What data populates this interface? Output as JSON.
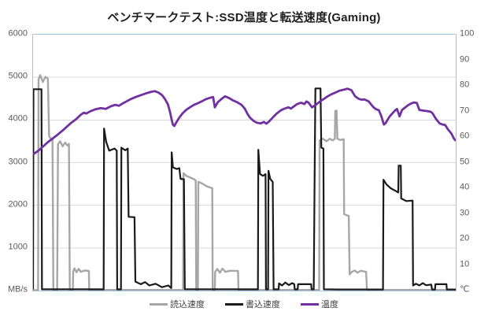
{
  "title": "ベンチマークテスト:SSD温度と転送速度(Gaming)",
  "frame_color": "#9DC3E6",
  "grid_color": "#D9D9D9",
  "axis_label_color": "#595959",
  "ticks_left": [
    "6000",
    "5000",
    "4000",
    "3000",
    "2000",
    "1000",
    "MB/s"
  ],
  "ticks_right": [
    "100",
    "90",
    "80",
    "70",
    "60",
    "50",
    "40",
    "30",
    "20",
    "10",
    "℃"
  ],
  "legend": [
    {
      "label": "読込速度",
      "color": "#A6A6A6"
    },
    {
      "label": "書込速度",
      "color": "#1A1A1A"
    },
    {
      "label": "温度",
      "color": "#7030A0"
    }
  ],
  "chart_data": {
    "type": "line",
    "title": "ベンチマークテスト:SSD温度と転送速度(Gaming)",
    "xlabel": "",
    "x_range_percent": [
      0,
      100
    ],
    "ylabel_left": "MB/s",
    "ylim_left": [
      0,
      6000
    ],
    "ylabel_right": "℃",
    "ylim_right": [
      0,
      100
    ],
    "grid": "horizontal-only",
    "legend_position": "bottom",
    "series": [
      {
        "name": "読込速度",
        "axis": "left",
        "color": "#A6A6A6",
        "width": 2.4,
        "points": [
          [
            0,
            10
          ],
          [
            1.2,
            10
          ],
          [
            1.3,
            4950
          ],
          [
            1.7,
            5050
          ],
          [
            2.3,
            4890
          ],
          [
            2.9,
            5010
          ],
          [
            3.5,
            4970
          ],
          [
            3.8,
            3620
          ],
          [
            4.2,
            3560
          ],
          [
            4.6,
            3550
          ],
          [
            4.8,
            10
          ],
          [
            5.7,
            10
          ],
          [
            5.9,
            3430
          ],
          [
            6.4,
            3500
          ],
          [
            7.0,
            3380
          ],
          [
            7.6,
            3470
          ],
          [
            8.1,
            3400
          ],
          [
            8.5,
            3440
          ],
          [
            8.7,
            10
          ],
          [
            9.4,
            10
          ],
          [
            9.5,
            450
          ],
          [
            9.8,
            520
          ],
          [
            10.3,
            430
          ],
          [
            10.8,
            510
          ],
          [
            11.3,
            440
          ],
          [
            12.2,
            470
          ],
          [
            13.2,
            460
          ],
          [
            13.3,
            15
          ],
          [
            17,
            15
          ],
          [
            22,
            15
          ],
          [
            28,
            15
          ],
          [
            33,
            15
          ],
          [
            35.5,
            15
          ],
          [
            35.6,
            2750
          ],
          [
            36.3,
            2690
          ],
          [
            37.2,
            2650
          ],
          [
            38.1,
            2610
          ],
          [
            38.5,
            2580
          ],
          [
            38.6,
            15
          ],
          [
            39.0,
            15
          ],
          [
            39.1,
            2550
          ],
          [
            40.0,
            2510
          ],
          [
            41.2,
            2440
          ],
          [
            42.4,
            2400
          ],
          [
            42.5,
            15
          ],
          [
            43.0,
            15
          ],
          [
            43.1,
            440
          ],
          [
            43.6,
            510
          ],
          [
            44.2,
            420
          ],
          [
            44.8,
            515
          ],
          [
            45.5,
            440
          ],
          [
            46.6,
            465
          ],
          [
            48.5,
            460
          ],
          [
            48.6,
            15
          ],
          [
            54,
            15
          ],
          [
            60,
            15
          ],
          [
            67.7,
            15
          ],
          [
            67.8,
            3520
          ],
          [
            68.6,
            3560
          ],
          [
            69.4,
            3500
          ],
          [
            70.2,
            3560
          ],
          [
            70.9,
            3520
          ],
          [
            71.4,
            3560
          ],
          [
            71.5,
            4210
          ],
          [
            71.8,
            4220
          ],
          [
            72.0,
            3560
          ],
          [
            72.7,
            3530
          ],
          [
            73.5,
            3550
          ],
          [
            73.6,
            1790
          ],
          [
            74.7,
            1750
          ],
          [
            74.9,
            380
          ],
          [
            75.4,
            440
          ],
          [
            76.1,
            470
          ],
          [
            76.8,
            420
          ],
          [
            77.5,
            465
          ],
          [
            78.8,
            440
          ],
          [
            79.0,
            15
          ],
          [
            84,
            15
          ],
          [
            90,
            15
          ],
          [
            100,
            15
          ]
        ]
      },
      {
        "name": "書込速度",
        "axis": "left",
        "color": "#1A1A1A",
        "width": 2.2,
        "points": [
          [
            0,
            30
          ],
          [
            0.1,
            4720
          ],
          [
            2.0,
            4720
          ],
          [
            2.1,
            30
          ],
          [
            16.7,
            30
          ],
          [
            16.8,
            3800
          ],
          [
            17.3,
            3490
          ],
          [
            18.0,
            3280
          ],
          [
            19.3,
            3330
          ],
          [
            19.8,
            3280
          ],
          [
            19.9,
            30
          ],
          [
            20.8,
            30
          ],
          [
            20.9,
            3350
          ],
          [
            21.8,
            3290
          ],
          [
            22.4,
            3330
          ],
          [
            22.6,
            1730
          ],
          [
            24.0,
            1720
          ],
          [
            24.2,
            210
          ],
          [
            25.5,
            150
          ],
          [
            26.5,
            200
          ],
          [
            27.5,
            120
          ],
          [
            29.0,
            160
          ],
          [
            30.5,
            80
          ],
          [
            32.0,
            120
          ],
          [
            32.7,
            60
          ],
          [
            32.8,
            3240
          ],
          [
            33.1,
            2890
          ],
          [
            34.0,
            2850
          ],
          [
            34.6,
            2870
          ],
          [
            34.9,
            2620
          ],
          [
            35.7,
            2610
          ],
          [
            35.9,
            30
          ],
          [
            38,
            30
          ],
          [
            42,
            30
          ],
          [
            47,
            30
          ],
          [
            53.2,
            30
          ],
          [
            53.3,
            3300
          ],
          [
            53.7,
            2730
          ],
          [
            54.4,
            2690
          ],
          [
            55.0,
            2730
          ],
          [
            55.1,
            30
          ],
          [
            55.6,
            30
          ],
          [
            55.7,
            2810
          ],
          [
            56.1,
            2620
          ],
          [
            56.7,
            2550
          ],
          [
            56.9,
            30
          ],
          [
            58.1,
            30
          ],
          [
            58.2,
            170
          ],
          [
            58.9,
            120
          ],
          [
            59.7,
            190
          ],
          [
            60.5,
            130
          ],
          [
            61.3,
            175
          ],
          [
            61.8,
            150
          ],
          [
            61.9,
            30
          ],
          [
            62.6,
            30
          ],
          [
            62.7,
            150
          ],
          [
            65.8,
            150
          ],
          [
            65.9,
            30
          ],
          [
            66.4,
            30
          ],
          [
            66.6,
            2400
          ],
          [
            66.8,
            4740
          ],
          [
            68.0,
            4740
          ],
          [
            68.2,
            3350
          ],
          [
            68.7,
            3330
          ],
          [
            68.8,
            30
          ],
          [
            72,
            25
          ],
          [
            78,
            25
          ],
          [
            82.8,
            25
          ],
          [
            82.9,
            2600
          ],
          [
            83.6,
            2490
          ],
          [
            84.6,
            2400
          ],
          [
            85.9,
            2330
          ],
          [
            86.4,
            2300
          ],
          [
            86.5,
            2930
          ],
          [
            87.0,
            2930
          ],
          [
            87.1,
            2160
          ],
          [
            88.3,
            2100
          ],
          [
            89.8,
            2110
          ],
          [
            89.9,
            120
          ],
          [
            90.6,
            160
          ],
          [
            91.4,
            120
          ],
          [
            92.2,
            175
          ],
          [
            93.0,
            125
          ],
          [
            94.2,
            140
          ],
          [
            94.4,
            25
          ],
          [
            95.1,
            25
          ],
          [
            95.2,
            150
          ],
          [
            97.8,
            150
          ],
          [
            97.9,
            25
          ],
          [
            100,
            25
          ]
        ]
      },
      {
        "name": "温度",
        "axis": "right",
        "color": "#7030A0",
        "width": 2.8,
        "points": [
          [
            0,
            53.2
          ],
          [
            1.5,
            55
          ],
          [
            3.5,
            58
          ],
          [
            5.5,
            60.5
          ],
          [
            7.3,
            63
          ],
          [
            9,
            65.5
          ],
          [
            10.2,
            67
          ],
          [
            11.2,
            68.6
          ],
          [
            12,
            69.5
          ],
          [
            12.6,
            69.2
          ],
          [
            13.6,
            70.1
          ],
          [
            14.7,
            70.8
          ],
          [
            16,
            71.3
          ],
          [
            17.2,
            71
          ],
          [
            18.4,
            72
          ],
          [
            19.5,
            72.6
          ],
          [
            20.3,
            72.2
          ],
          [
            21.2,
            73.1
          ],
          [
            22.3,
            74.1
          ],
          [
            23.1,
            74.8
          ],
          [
            24.1,
            75.5
          ],
          [
            25.9,
            76.6
          ],
          [
            27,
            77.2
          ],
          [
            28,
            77.7
          ],
          [
            28.8,
            77.9
          ],
          [
            29.6,
            77.4
          ],
          [
            30.5,
            76.4
          ],
          [
            31.2,
            74.9
          ],
          [
            31.9,
            72.8
          ],
          [
            32.4,
            69.8
          ],
          [
            32.8,
            66.8
          ],
          [
            33.1,
            64.8
          ],
          [
            33.4,
            64.3
          ],
          [
            33.9,
            65.7
          ],
          [
            34.6,
            67.6
          ],
          [
            35.3,
            69.1
          ],
          [
            36.2,
            70.6
          ],
          [
            37.1,
            71.6
          ],
          [
            38.1,
            72.6
          ],
          [
            39.1,
            73.3
          ],
          [
            40.1,
            74.1
          ],
          [
            40.9,
            74.8
          ],
          [
            41.8,
            75.3
          ],
          [
            42.6,
            75.6
          ],
          [
            43,
            71.6
          ],
          [
            43.7,
            73.6
          ],
          [
            44.6,
            74.9
          ],
          [
            45.4,
            75.9
          ],
          [
            46.4,
            75.2
          ],
          [
            47.3,
            74.3
          ],
          [
            48.3,
            73.6
          ],
          [
            49.3,
            72.6
          ],
          [
            50.1,
            71.1
          ],
          [
            50.7,
            69.1
          ],
          [
            51.3,
            67.6
          ],
          [
            52.1,
            66.4
          ],
          [
            52.9,
            65.6
          ],
          [
            53.9,
            65.3
          ],
          [
            54.6,
            65.9
          ],
          [
            55.2,
            65.2
          ],
          [
            55.8,
            66
          ],
          [
            56.7,
            67.6
          ],
          [
            57.6,
            69.1
          ],
          [
            58.6,
            70.4
          ],
          [
            59.5,
            71.1
          ],
          [
            60.4,
            71.6
          ],
          [
            61,
            71.1
          ],
          [
            61.8,
            72.1
          ],
          [
            62.5,
            72.9
          ],
          [
            63.4,
            73.4
          ],
          [
            64.2,
            72.9
          ],
          [
            64.7,
            73.9
          ],
          [
            65.2,
            73.4
          ],
          [
            66,
            71.6
          ],
          [
            66.9,
            72.6
          ],
          [
            67.9,
            73.9
          ],
          [
            68.8,
            74.9
          ],
          [
            69.7,
            75.9
          ],
          [
            70.6,
            76.7
          ],
          [
            71.6,
            77.4
          ],
          [
            72.5,
            78.1
          ],
          [
            73.5,
            78.5
          ],
          [
            74.4,
            78.9
          ],
          [
            75.3,
            78.3
          ],
          [
            76.2,
            75.9
          ],
          [
            77.1,
            74.9
          ],
          [
            77.7,
            74.6
          ],
          [
            78.4,
            74.7
          ],
          [
            79.4,
            73.9
          ],
          [
            80.5,
            71.7
          ],
          [
            81.1,
            70.9
          ],
          [
            81.8,
            70.5
          ],
          [
            82.4,
            68.1
          ],
          [
            83,
            64.9
          ],
          [
            83.4,
            65.4
          ],
          [
            84.3,
            67.9
          ],
          [
            85.1,
            69.4
          ],
          [
            85.6,
            70.3
          ],
          [
            86.1,
            71
          ],
          [
            86.7,
            68.1
          ],
          [
            87.3,
            70.6
          ],
          [
            88,
            71.5
          ],
          [
            88.7,
            72.4
          ],
          [
            89.3,
            73
          ],
          [
            90.1,
            73.5
          ],
          [
            90.8,
            73.3
          ],
          [
            91.4,
            70.6
          ],
          [
            92.4,
            70.3
          ],
          [
            93.4,
            70.1
          ],
          [
            94,
            69.9
          ],
          [
            94.5,
            69.3
          ],
          [
            95.3,
            67.1
          ],
          [
            96.2,
            65.3
          ],
          [
            96.9,
            64.9
          ],
          [
            97.5,
            64.7
          ],
          [
            98.1,
            63.1
          ],
          [
            99,
            61.3
          ],
          [
            99.5,
            59.6
          ],
          [
            100,
            58.5
          ]
        ]
      }
    ]
  }
}
